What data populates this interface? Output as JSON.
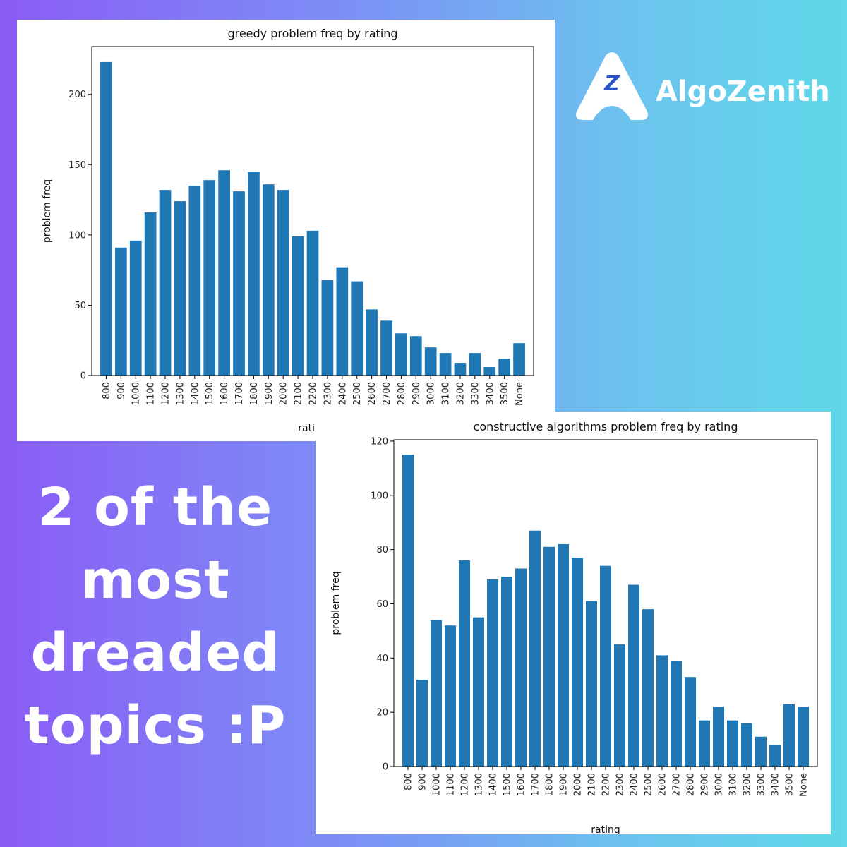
{
  "brand": {
    "name": "AlgoZenith",
    "logo_letter": "Z"
  },
  "headline": "2 of the most dreaded topics :P",
  "chart_data": [
    {
      "type": "bar",
      "title": "greedy problem freq by rating",
      "xlabel": "rating",
      "ylabel": "problem freq",
      "categories": [
        "800",
        "900",
        "1000",
        "1100",
        "1200",
        "1300",
        "1400",
        "1500",
        "1600",
        "1700",
        "1800",
        "1900",
        "2000",
        "2100",
        "2200",
        "2300",
        "2400",
        "2500",
        "2600",
        "2700",
        "2800",
        "2900",
        "3000",
        "3100",
        "3200",
        "3300",
        "3400",
        "3500",
        "None"
      ],
      "values": [
        223,
        91,
        96,
        116,
        132,
        124,
        135,
        139,
        146,
        131,
        145,
        136,
        132,
        99,
        103,
        68,
        77,
        67,
        47,
        39,
        30,
        28,
        20,
        16,
        9,
        16,
        6,
        12,
        23
      ],
      "yticks": [
        0,
        50,
        100,
        150,
        200
      ],
      "ylim": [
        0,
        234
      ],
      "color": "#1f77b4",
      "grid": false
    },
    {
      "type": "bar",
      "title": "constructive algorithms problem freq by rating",
      "xlabel": "rating",
      "ylabel": "problem freq",
      "categories": [
        "800",
        "900",
        "1000",
        "1100",
        "1200",
        "1300",
        "1400",
        "1500",
        "1600",
        "1700",
        "1800",
        "1900",
        "2000",
        "2100",
        "2200",
        "2300",
        "2400",
        "2500",
        "2600",
        "2700",
        "2800",
        "2900",
        "3000",
        "3100",
        "3200",
        "3300",
        "3400",
        "3500",
        "None"
      ],
      "values": [
        115,
        32,
        54,
        52,
        76,
        55,
        69,
        70,
        73,
        87,
        81,
        82,
        77,
        61,
        74,
        45,
        67,
        58,
        41,
        39,
        33,
        17,
        22,
        17,
        16,
        11,
        8,
        23,
        22
      ],
      "yticks": [
        0,
        20,
        40,
        60,
        80,
        100,
        120
      ],
      "ylim": [
        0,
        120.5
      ],
      "color": "#1f77b4",
      "grid": false
    }
  ]
}
